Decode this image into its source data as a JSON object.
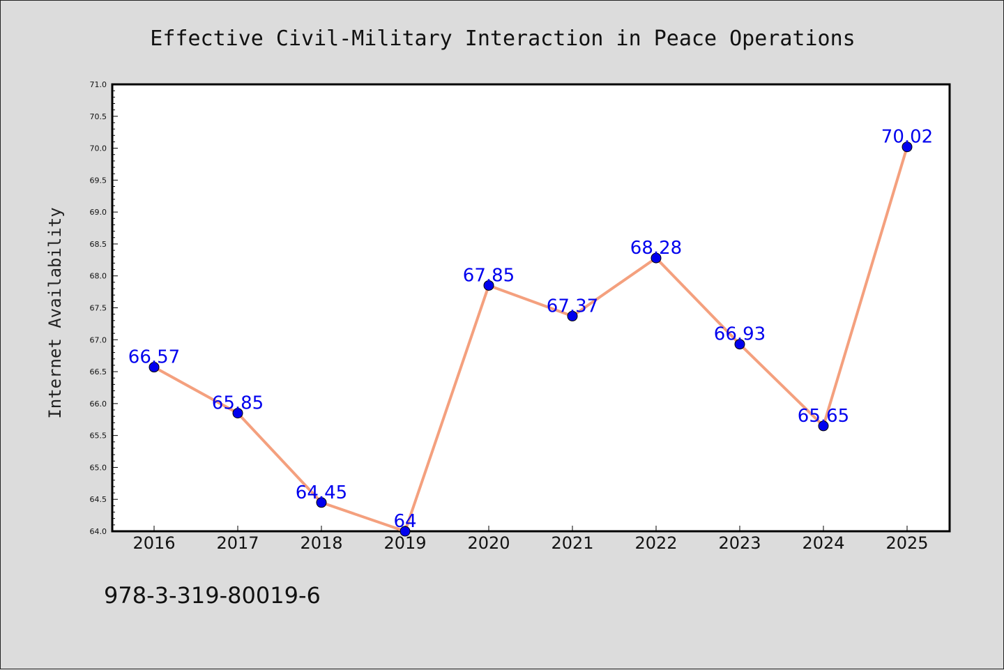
{
  "chart_data": {
    "type": "line",
    "title": "Effective Civil-Military Interaction in Peace Operations",
    "xlabel": "",
    "ylabel": "Internet Availability",
    "categories": [
      "2016",
      "2017",
      "2018",
      "2019",
      "2020",
      "2021",
      "2022",
      "2023",
      "2024",
      "2025"
    ],
    "values": [
      66.57,
      65.85,
      64.45,
      64,
      67.85,
      67.37,
      68.28,
      66.93,
      65.65,
      70.02
    ],
    "data_labels": [
      "66.57",
      "65.85",
      "64.45",
      "64",
      "67.85",
      "67.37",
      "68.28",
      "66.93",
      "65.65",
      "70.02"
    ],
    "ylim": [
      64.0,
      71.0
    ],
    "yticks": [
      "64.0",
      "64.5",
      "65.0",
      "65.5",
      "66.0",
      "66.5",
      "67.0",
      "67.5",
      "68.0",
      "68.5",
      "69.0",
      "69.5",
      "70.0",
      "70.5",
      "71.0"
    ],
    "grid": false,
    "line_color": "#f4a07e",
    "marker_color": "#0000ee",
    "label_color": "#0000ee",
    "plot_background": "#ffffff",
    "page_background": "#dcdcdc"
  },
  "footer": {
    "isbn": "978-3-319-80019-6"
  }
}
